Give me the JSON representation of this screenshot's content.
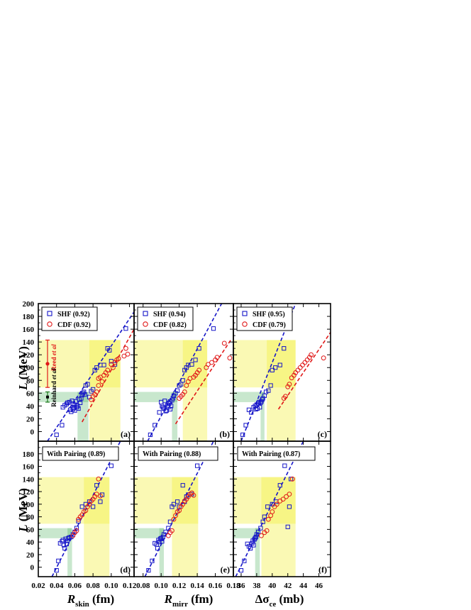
{
  "figure": {
    "y_axis_label": "L (MeV)",
    "y_axis_label_italic": "L",
    "y_axis_label_unit": " (MeV)",
    "x_axis_labels": [
      {
        "main": "R",
        "sub": "skin",
        "unit": " (fm)"
      },
      {
        "main": "R",
        "sub": "mirr",
        "unit": " (fm)"
      },
      {
        "main": "Δσ",
        "sub": "ce",
        "unit": " (mb)"
      }
    ],
    "colors": {
      "shf": "#1515c8",
      "cdf": "#e01818",
      "yellow_band": "#f2ef3a",
      "green_band": "#3aa84a",
      "reed_bar": "#e01818",
      "reinhard_bar": "#1a7a1a"
    },
    "reference_bars": {
      "reed": {
        "label_prefix": "Reed ",
        "label_italic": "et al",
        "center": 106,
        "low": 69,
        "high": 143
      },
      "reinhard": {
        "label_prefix": "Reinhard ",
        "label_italic": "et al",
        "center": 54,
        "low": 46,
        "high": 62
      }
    }
  },
  "chart_data": [
    {
      "panel": "(a)",
      "type": "scatter",
      "xlabel": "R_skin (fm)",
      "ylabel": "L (MeV)",
      "xlim": [
        0.02,
        0.125
      ],
      "ylim": [
        -15,
        200
      ],
      "xticks": [
        0.02,
        0.04,
        0.06,
        0.08,
        0.1,
        0.12
      ],
      "xtick_labels": [
        "0.02",
        "0.04",
        "0.06",
        "0.08",
        "0.10",
        "0.12"
      ],
      "yticks": [
        0,
        20,
        40,
        60,
        80,
        100,
        120,
        140,
        160,
        180,
        200
      ],
      "legend": [
        {
          "name": "SHF",
          "corr": "(0.92)"
        },
        {
          "name": "CDF",
          "corr": "(0.92)"
        }
      ],
      "yellow_band": {
        "y": [
          69,
          143
        ],
        "x_max": 0.11,
        "x": [
          0.076,
          0.11
        ]
      },
      "green_band": {
        "y": [
          46,
          62
        ],
        "x": [
          0.063,
          0.075
        ]
      },
      "series": [
        {
          "name": "SHF",
          "x": [
            0.04,
            0.046,
            0.047,
            0.049,
            0.051,
            0.052,
            0.054,
            0.055,
            0.056,
            0.057,
            0.058,
            0.058,
            0.059,
            0.06,
            0.06,
            0.061,
            0.062,
            0.063,
            0.064,
            0.065,
            0.066,
            0.067,
            0.068,
            0.069,
            0.07,
            0.071,
            0.072,
            0.074,
            0.076,
            0.078,
            0.08,
            0.082,
            0.084,
            0.088,
            0.092,
            0.096,
            0.098,
            0.1,
            0.104,
            0.116
          ],
          "y": [
            -5,
            10,
            38,
            41,
            43,
            45,
            46,
            34,
            31,
            48,
            35,
            44,
            37,
            33,
            42,
            47,
            38,
            40,
            36,
            50,
            45,
            52,
            57,
            60,
            62,
            58,
            72,
            74,
            54,
            63,
            66,
            96,
            100,
            104,
            104,
            130,
            127,
            110,
            105,
            161
          ]
        },
        {
          "name": "CDF",
          "x": [
            0.078,
            0.08,
            0.082,
            0.084,
            0.086,
            0.086,
            0.088,
            0.09,
            0.092,
            0.094,
            0.096,
            0.1,
            0.102,
            0.104,
            0.106,
            0.108,
            0.114,
            0.116,
            0.118
          ],
          "y": [
            50,
            55,
            58,
            62,
            72,
            83,
            85,
            78,
            88,
            92,
            96,
            105,
            100,
            108,
            112,
            114,
            118,
            130,
            121
          ]
        },
        {
          "name": "SHF-fit",
          "x": [
            0.03,
            0.125
          ],
          "y": [
            -15,
            187
          ]
        },
        {
          "name": "CDF-fit",
          "x": [
            0.068,
            0.125
          ],
          "y": [
            15,
            160
          ]
        }
      ]
    },
    {
      "panel": "(b)",
      "type": "scatter",
      "xlabel": "R_mirr (fm)",
      "ylabel": "L (MeV)",
      "xlim": [
        0.07,
        0.18
      ],
      "ylim": [
        -15,
        200
      ],
      "xticks": [
        0.08,
        0.1,
        0.12,
        0.14,
        0.16
      ],
      "xtick_labels": [
        "0.08",
        "0.10",
        "0.12",
        "0.14",
        "0.16"
      ],
      "legend": [
        {
          "name": "SHF",
          "corr": "(0.94)"
        },
        {
          "name": "CDF",
          "corr": "(0.82)"
        }
      ],
      "yellow_band": {
        "y": [
          69,
          143
        ],
        "x": [
          0.124,
          0.151
        ]
      },
      "green_band": {
        "y": [
          46,
          62
        ],
        "x": [
          0.112,
          0.118
        ]
      },
      "series": [
        {
          "name": "SHF",
          "x": [
            0.088,
            0.093,
            0.098,
            0.1,
            0.101,
            0.102,
            0.103,
            0.104,
            0.105,
            0.106,
            0.107,
            0.108,
            0.108,
            0.109,
            0.11,
            0.11,
            0.111,
            0.112,
            0.113,
            0.114,
            0.116,
            0.118,
            0.12,
            0.122,
            0.124,
            0.126,
            0.128,
            0.13,
            0.134,
            0.138,
            0.142,
            0.158
          ],
          "y": [
            -5,
            10,
            30,
            46,
            40,
            38,
            36,
            48,
            32,
            33,
            41,
            45,
            38,
            44,
            47,
            35,
            40,
            49,
            52,
            56,
            60,
            64,
            72,
            74,
            80,
            96,
            100,
            104,
            105,
            112,
            130,
            161
          ]
        },
        {
          "name": "CDF",
          "x": [
            0.12,
            0.122,
            0.124,
            0.126,
            0.128,
            0.13,
            0.132,
            0.136,
            0.138,
            0.14,
            0.142,
            0.15,
            0.152,
            0.156,
            0.16,
            0.162,
            0.17,
            0.176
          ],
          "y": [
            52,
            55,
            58,
            62,
            72,
            78,
            83,
            85,
            88,
            92,
            96,
            100,
            105,
            108,
            112,
            116,
            138,
            115
          ]
        },
        {
          "name": "SHF-fit",
          "x": [
            0.085,
            0.167
          ],
          "y": [
            -15,
            200
          ]
        },
        {
          "name": "CDF-fit",
          "x": [
            0.116,
            0.178
          ],
          "y": [
            12,
            145
          ]
        }
      ]
    },
    {
      "panel": "(c)",
      "type": "scatter",
      "xlabel": "Δσ_ce (mb)",
      "ylabel": "L (MeV)",
      "xlim": [
        35,
        47.5
      ],
      "ylim": [
        -15,
        200
      ],
      "xticks": [
        36,
        38,
        40,
        42,
        44,
        46
      ],
      "xtick_labels": [
        "36",
        "38",
        "40",
        "42",
        "44",
        "46"
      ],
      "legend": [
        {
          "name": "SHF",
          "corr": "(0.95)"
        },
        {
          "name": "CDF",
          "corr": "(0.79)"
        }
      ],
      "yellow_band": {
        "y": [
          69,
          143
        ],
        "x": [
          39.3,
          43.0
        ]
      },
      "green_band": {
        "y": [
          46,
          62
        ],
        "x": [
          38.5,
          39.0
        ]
      },
      "series": [
        {
          "name": "SHF",
          "x": [
            36.2,
            36.6,
            37.0,
            37.3,
            37.6,
            37.8,
            37.9,
            38.0,
            38.1,
            38.2,
            38.3,
            38.4,
            38.5,
            38.6,
            38.7,
            38.8,
            39.0,
            39.2,
            39.5,
            39.8,
            40.0,
            40.4,
            41.0,
            41.5,
            42.0
          ],
          "y": [
            -5,
            10,
            34,
            30,
            38,
            40,
            35,
            42,
            36,
            44,
            46,
            38,
            45,
            47,
            50,
            52,
            56,
            62,
            64,
            72,
            96,
            100,
            104,
            130,
            161
          ]
        },
        {
          "name": "CDF",
          "x": [
            41.5,
            41.7,
            42.0,
            42.2,
            42.5,
            42.8,
            43.0,
            43.3,
            43.6,
            43.9,
            44.2,
            44.5,
            44.8,
            45.0,
            46.6
          ],
          "y": [
            52,
            55,
            70,
            74,
            84,
            88,
            92,
            96,
            100,
            104,
            108,
            112,
            116,
            120,
            115
          ]
        },
        {
          "name": "SHF-fit",
          "x": [
            36.0,
            43.0
          ],
          "y": [
            -15,
            200
          ]
        },
        {
          "name": "CDF-fit",
          "x": [
            40.8,
            47.5
          ],
          "y": [
            35,
            155
          ]
        }
      ]
    },
    {
      "panel": "(d)",
      "type": "scatter",
      "xlabel": "R_skin (fm)",
      "ylabel": "L (MeV)",
      "xlim": [
        0.02,
        0.125
      ],
      "ylim": [
        -15,
        200
      ],
      "xticks": [
        0.02,
        0.04,
        0.06,
        0.08,
        0.1,
        0.12
      ],
      "xtick_labels": [
        "0.02",
        "0.04",
        "0.06",
        "0.08",
        "0.10",
        "0.12"
      ],
      "yticks": [
        0,
        20,
        40,
        60,
        80,
        100,
        120,
        140,
        160,
        180
      ],
      "legend": [
        {
          "name": "With Pairing",
          "corr": "(0.89)"
        }
      ],
      "yellow_band": {
        "y": [
          69,
          143
        ],
        "x": [
          0.07,
          0.098
        ]
      },
      "green_band": {
        "y": [
          46,
          62
        ],
        "x": [
          0.052,
          0.057
        ]
      },
      "series": [
        {
          "name": "SHF",
          "x": [
            0.04,
            0.042,
            0.044,
            0.046,
            0.047,
            0.048,
            0.049,
            0.05,
            0.051,
            0.052,
            0.053,
            0.054,
            0.056,
            0.058,
            0.06,
            0.062,
            0.064,
            0.068,
            0.072,
            0.076,
            0.08,
            0.084,
            0.088,
            0.09,
            0.1
          ],
          "y": [
            -5,
            10,
            38,
            41,
            43,
            35,
            30,
            45,
            37,
            42,
            46,
            47,
            48,
            52,
            56,
            62,
            73,
            96,
            100,
            104,
            96,
            130,
            104,
            115,
            161
          ]
        },
        {
          "name": "CDF",
          "x": [
            0.058,
            0.06,
            0.062,
            0.064,
            0.066,
            0.068,
            0.07,
            0.072,
            0.074,
            0.076,
            0.078,
            0.08,
            0.082,
            0.084,
            0.086,
            0.088
          ],
          "y": [
            50,
            55,
            58,
            76,
            80,
            83,
            88,
            90,
            96,
            100,
            105,
            108,
            112,
            116,
            140,
            113
          ]
        },
        {
          "name": "SHF-fit",
          "x": [
            0.035,
            0.11
          ],
          "y": [
            -15,
            200
          ]
        }
      ]
    },
    {
      "panel": "(e)",
      "type": "scatter",
      "xlabel": "R_mirr (fm)",
      "ylabel": "L (MeV)",
      "xlim": [
        0.07,
        0.18
      ],
      "ylim": [
        -15,
        200
      ],
      "xticks": [
        0.08,
        0.1,
        0.12,
        0.14,
        0.16,
        0.18
      ],
      "xtick_labels": [
        "0.08",
        "0.10",
        "0.12",
        "0.14",
        "0.16",
        "0.18"
      ],
      "legend": [
        {
          "name": "With Pairing",
          "corr": "(0.88)"
        }
      ],
      "yellow_band": {
        "y": [
          69,
          143
        ],
        "x": [
          0.112,
          0.141
        ]
      },
      "green_band": {
        "y": [
          46,
          62
        ],
        "x": [
          0.098,
          0.103
        ]
      },
      "series": [
        {
          "name": "SHF",
          "x": [
            0.086,
            0.09,
            0.093,
            0.095,
            0.096,
            0.097,
            0.098,
            0.099,
            0.1,
            0.101,
            0.102,
            0.103,
            0.105,
            0.108,
            0.11,
            0.112,
            0.114,
            0.118,
            0.12,
            0.124,
            0.126,
            0.128,
            0.13,
            0.134,
            0.14
          ],
          "y": [
            -5,
            10,
            38,
            36,
            30,
            43,
            40,
            45,
            46,
            41,
            48,
            52,
            56,
            62,
            72,
            96,
            100,
            104,
            96,
            130,
            104,
            112,
            115,
            116,
            161
          ]
        },
        {
          "name": "CDF",
          "x": [
            0.108,
            0.11,
            0.112,
            0.114,
            0.116,
            0.118,
            0.12,
            0.122,
            0.124,
            0.126,
            0.128,
            0.13,
            0.132,
            0.134,
            0.136
          ],
          "y": [
            50,
            55,
            58,
            76,
            82,
            88,
            90,
            96,
            100,
            105,
            108,
            112,
            116,
            118,
            114
          ]
        },
        {
          "name": "SHF-fit",
          "x": [
            0.082,
            0.158
          ],
          "y": [
            -15,
            200
          ]
        }
      ]
    },
    {
      "panel": "(f)",
      "type": "scatter",
      "xlabel": "Δσ_ce (mb)",
      "ylabel": "L (MeV)",
      "xlim": [
        35,
        47.5
      ],
      "ylim": [
        -15,
        200
      ],
      "xticks": [
        36,
        38,
        40,
        42,
        44,
        46
      ],
      "xtick_labels": [
        "36",
        "38",
        "40",
        "42",
        "44",
        "46"
      ],
      "legend": [
        {
          "name": "With Pairing",
          "corr": "(0.87)"
        }
      ],
      "yellow_band": {
        "y": [
          69,
          143
        ],
        "x": [
          38.6,
          43.0
        ]
      },
      "green_band": {
        "y": [
          46,
          62
        ],
        "x": [
          37.8,
          38.4
        ]
      },
      "series": [
        {
          "name": "SHF",
          "x": [
            36.0,
            36.4,
            36.8,
            37.0,
            37.2,
            37.4,
            37.5,
            37.6,
            37.7,
            37.8,
            37.9,
            38.0,
            38.2,
            38.5,
            38.8,
            39.0,
            39.4,
            40.0,
            40.5,
            41.0,
            41.6,
            42.0,
            42.2,
            42.4
          ],
          "y": [
            -5,
            10,
            37,
            33,
            30,
            38,
            42,
            35,
            44,
            46,
            48,
            52,
            56,
            62,
            72,
            80,
            96,
            100,
            104,
            130,
            161,
            64,
            96,
            140
          ]
        },
        {
          "name": "CDF",
          "x": [
            38.6,
            39.0,
            39.3,
            39.5,
            39.8,
            40.0,
            40.3,
            40.6,
            41.0,
            41.4,
            41.8,
            42.2,
            42.6
          ],
          "y": [
            50,
            55,
            58,
            76,
            82,
            88,
            96,
            100,
            105,
            108,
            112,
            116,
            140
          ]
        },
        {
          "name": "SHF-fit",
          "x": [
            35.3,
            44.0
          ],
          "y": [
            -15,
            200
          ]
        }
      ]
    }
  ]
}
